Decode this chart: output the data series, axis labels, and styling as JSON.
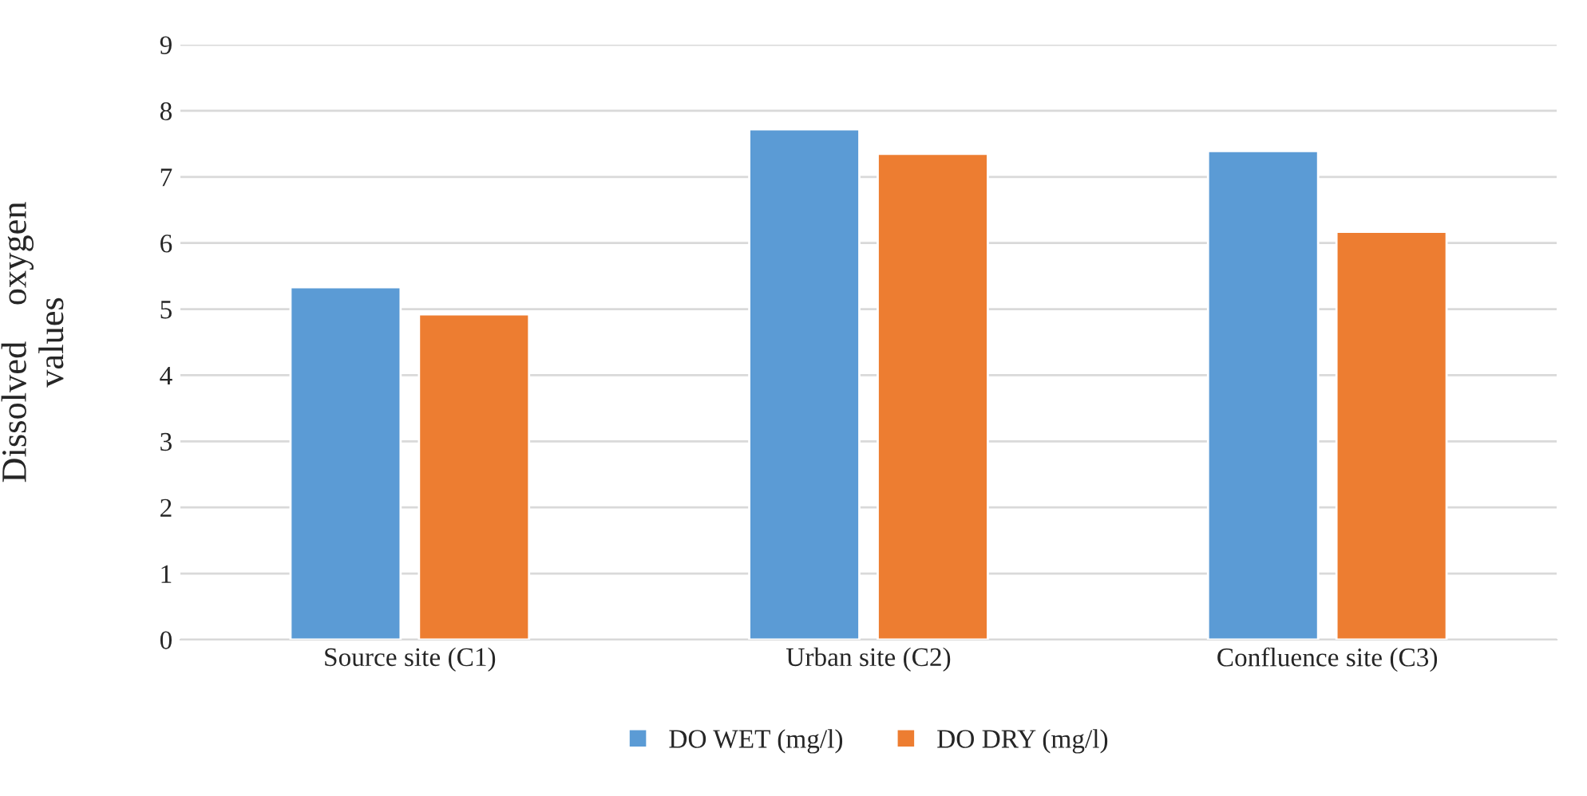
{
  "chart_data": {
    "type": "bar",
    "ylabel": "Dissolved    oxygen\nvalues",
    "categories": [
      "Source site (C1)",
      "Urban site (C2)",
      "Confluence site (C3)"
    ],
    "series": [
      {
        "name": "DO WET (mg/l)",
        "color": "#5b9bd5",
        "values": [
          5.33,
          7.72,
          7.39
        ]
      },
      {
        "name": "DO DRY (mg/l)",
        "color": "#ed7d31",
        "values": [
          4.92,
          7.35,
          6.17
        ]
      }
    ],
    "ylim": [
      0,
      9
    ],
    "yticks": [
      0,
      1,
      2,
      3,
      4,
      5,
      6,
      7,
      8,
      9
    ],
    "grid": "y",
    "legend": "bottom"
  }
}
